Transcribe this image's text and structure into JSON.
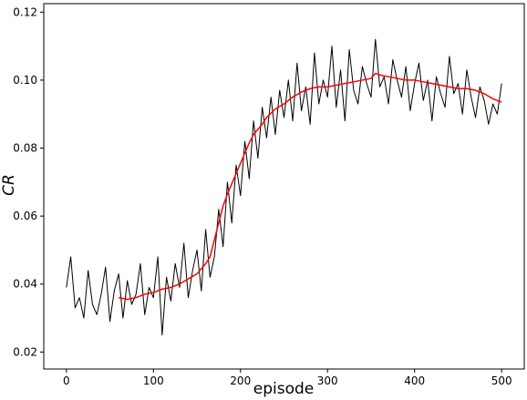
{
  "chart_data": {
    "type": "line",
    "xlabel": "episode",
    "ylabel": "CR",
    "xlim": [
      -26,
      526
    ],
    "ylim": [
      0.015,
      0.1225
    ],
    "xticks": [
      0,
      100,
      200,
      300,
      400,
      500
    ],
    "yticks": [
      0.02,
      0.04,
      0.06,
      0.08,
      0.1,
      0.12
    ],
    "xtick_labels": [
      "0",
      "100",
      "200",
      "300",
      "400",
      "500"
    ],
    "ytick_labels": [
      "0.02",
      "0.04",
      "0.06",
      "0.08",
      "0.10",
      "0.12"
    ],
    "grid": false,
    "legend": false,
    "series": [
      {
        "color": "#000000",
        "x": [
          0,
          5,
          10,
          15,
          20,
          25,
          30,
          35,
          40,
          45,
          50,
          55,
          60,
          65,
          70,
          75,
          80,
          85,
          90,
          95,
          100,
          105,
          110,
          115,
          120,
          125,
          130,
          135,
          140,
          145,
          150,
          155,
          160,
          165,
          170,
          175,
          180,
          185,
          190,
          195,
          200,
          205,
          210,
          215,
          220,
          225,
          230,
          235,
          240,
          245,
          250,
          255,
          260,
          265,
          270,
          275,
          280,
          285,
          290,
          295,
          300,
          305,
          310,
          315,
          320,
          325,
          330,
          335,
          340,
          345,
          350,
          355,
          360,
          365,
          370,
          375,
          380,
          385,
          390,
          395,
          400,
          405,
          410,
          415,
          420,
          425,
          430,
          435,
          440,
          445,
          450,
          455,
          460,
          465,
          470,
          475,
          480,
          485,
          490,
          495,
          500
        ],
        "y": [
          0.039,
          0.048,
          0.033,
          0.036,
          0.03,
          0.044,
          0.034,
          0.031,
          0.037,
          0.045,
          0.029,
          0.038,
          0.043,
          0.03,
          0.041,
          0.034,
          0.037,
          0.046,
          0.031,
          0.039,
          0.036,
          0.048,
          0.025,
          0.042,
          0.035,
          0.046,
          0.039,
          0.052,
          0.036,
          0.044,
          0.05,
          0.038,
          0.056,
          0.042,
          0.048,
          0.062,
          0.051,
          0.07,
          0.058,
          0.075,
          0.066,
          0.082,
          0.071,
          0.088,
          0.077,
          0.092,
          0.083,
          0.095,
          0.084,
          0.097,
          0.089,
          0.1,
          0.088,
          0.105,
          0.091,
          0.098,
          0.087,
          0.108,
          0.093,
          0.1,
          0.095,
          0.11,
          0.092,
          0.103,
          0.088,
          0.109,
          0.097,
          0.093,
          0.104,
          0.099,
          0.095,
          0.112,
          0.098,
          0.101,
          0.093,
          0.106,
          0.1,
          0.095,
          0.104,
          0.091,
          0.099,
          0.105,
          0.094,
          0.1,
          0.088,
          0.101,
          0.096,
          0.092,
          0.107,
          0.096,
          0.099,
          0.09,
          0.103,
          0.095,
          0.089,
          0.098,
          0.094,
          0.087,
          0.093,
          0.09,
          0.099
        ]
      },
      {
        "color": "#ff0000",
        "x": [
          60,
          70,
          80,
          90,
          100,
          110,
          120,
          130,
          140,
          150,
          155,
          160,
          165,
          170,
          175,
          180,
          185,
          190,
          195,
          200,
          205,
          210,
          215,
          220,
          225,
          230,
          240,
          250,
          260,
          270,
          280,
          290,
          300,
          310,
          320,
          330,
          340,
          350,
          355,
          360,
          370,
          380,
          390,
          400,
          410,
          420,
          430,
          440,
          450,
          460,
          470,
          480,
          490,
          500
        ],
        "y": [
          0.036,
          0.0355,
          0.036,
          0.037,
          0.0375,
          0.0385,
          0.039,
          0.04,
          0.0415,
          0.043,
          0.0445,
          0.046,
          0.048,
          0.053,
          0.058,
          0.063,
          0.0665,
          0.0695,
          0.0725,
          0.0755,
          0.0785,
          0.0815,
          0.084,
          0.0855,
          0.087,
          0.089,
          0.0915,
          0.093,
          0.095,
          0.0965,
          0.0975,
          0.098,
          0.098,
          0.0985,
          0.099,
          0.0995,
          0.1,
          0.1005,
          0.102,
          0.1015,
          0.101,
          0.1005,
          0.1,
          0.1,
          0.0995,
          0.099,
          0.0985,
          0.098,
          0.0975,
          0.0975,
          0.097,
          0.096,
          0.0945,
          0.0935
        ]
      }
    ]
  }
}
